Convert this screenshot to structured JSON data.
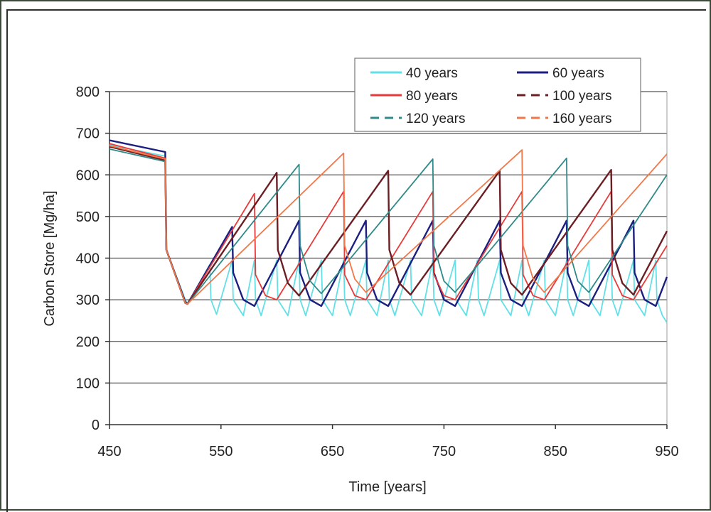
{
  "chart_data": {
    "type": "line",
    "title": "",
    "xlabel": "Time [years]",
    "ylabel": "Carbon Store [Mg/ha]",
    "xlim": [
      450,
      950
    ],
    "ylim": [
      0,
      800
    ],
    "xticks": [
      450,
      550,
      650,
      750,
      850,
      950
    ],
    "yticks": [
      0,
      100,
      200,
      300,
      400,
      500,
      600,
      700,
      800
    ],
    "grid": "horizontal",
    "legend_position": "top-right",
    "series": [
      {
        "name": "40 years",
        "color": "#62e0e6",
        "dash": "solid",
        "peak": 395,
        "x": [
          450,
          500,
          501,
          518,
          520,
          540,
          541,
          546,
          560,
          561,
          570,
          580,
          581,
          586,
          600,
          601,
          610,
          620,
          621,
          626,
          640,
          641,
          650,
          660,
          661,
          666,
          680,
          681,
          690,
          700,
          701,
          706,
          720,
          721,
          730,
          740,
          741,
          746,
          760,
          761,
          770,
          780,
          781,
          786,
          800,
          801,
          810,
          820,
          821,
          826,
          840,
          841,
          850,
          860,
          861,
          866,
          880,
          881,
          890,
          900,
          901,
          906,
          920,
          921,
          930,
          940,
          941,
          946,
          950
        ],
        "y": [
          672,
          645,
          420,
          300,
          290,
          385,
          300,
          265,
          395,
          300,
          262,
          395,
          300,
          262,
          395,
          300,
          262,
          395,
          300,
          262,
          395,
          300,
          262,
          395,
          300,
          262,
          395,
          300,
          262,
          395,
          300,
          262,
          395,
          300,
          262,
          395,
          300,
          262,
          395,
          300,
          262,
          395,
          300,
          262,
          395,
          300,
          262,
          395,
          300,
          262,
          395,
          300,
          262,
          395,
          300,
          262,
          395,
          300,
          262,
          395,
          300,
          262,
          395,
          300,
          262,
          395,
          300,
          262,
          245
        ]
      },
      {
        "name": "60 years",
        "color": "#1c1e80",
        "dash": "solid",
        "x": [
          450,
          500,
          501,
          518,
          520,
          560,
          561,
          570,
          580,
          620,
          621,
          630,
          640,
          680,
          681,
          690,
          700,
          740,
          741,
          750,
          760,
          800,
          801,
          810,
          820,
          860,
          861,
          870,
          880,
          920,
          921,
          930,
          940,
          950
        ],
        "y": [
          683,
          655,
          420,
          295,
          290,
          475,
          365,
          300,
          285,
          490,
          365,
          300,
          285,
          490,
          365,
          300,
          285,
          490,
          365,
          300,
          285,
          490,
          365,
          300,
          285,
          490,
          365,
          300,
          285,
          490,
          365,
          300,
          285,
          355
        ]
      },
      {
        "name": "80 years",
        "color": "#e83a3a",
        "dash": "solid",
        "x": [
          450,
          500,
          501,
          518,
          520,
          580,
          581,
          590,
          600,
          660,
          661,
          670,
          680,
          740,
          741,
          750,
          760,
          820,
          821,
          830,
          840,
          900,
          901,
          910,
          920,
          950
        ],
        "y": [
          675,
          640,
          420,
          292,
          290,
          555,
          360,
          310,
          300,
          560,
          360,
          310,
          300,
          560,
          360,
          310,
          300,
          560,
          360,
          310,
          300,
          560,
          360,
          310,
          300,
          430
        ]
      },
      {
        "name": "100 years",
        "color": "#6b1e24",
        "dash": "dash",
        "x": [
          450,
          500,
          501,
          518,
          520,
          600,
          601,
          610,
          620,
          700,
          701,
          710,
          720,
          800,
          801,
          810,
          820,
          900,
          901,
          910,
          920,
          950
        ],
        "y": [
          668,
          635,
          420,
          292,
          290,
          605,
          420,
          340,
          310,
          610,
          420,
          340,
          312,
          610,
          420,
          340,
          312,
          612,
          420,
          340,
          312,
          465
        ]
      },
      {
        "name": "120 years",
        "color": "#2f8a88",
        "dash": "dash",
        "x": [
          450,
          500,
          501,
          518,
          520,
          620,
          621,
          630,
          640,
          740,
          741,
          750,
          760,
          860,
          861,
          870,
          880,
          950
        ],
        "y": [
          662,
          632,
          420,
          292,
          290,
          625,
          430,
          345,
          315,
          638,
          430,
          345,
          318,
          640,
          430,
          345,
          318,
          600
        ]
      },
      {
        "name": "160 years",
        "color": "#f2784a",
        "dash": "dash",
        "x": [
          450,
          500,
          501,
          518,
          520,
          660,
          661,
          670,
          680,
          820,
          821,
          830,
          840,
          950
        ],
        "y": [
          670,
          638,
          420,
          292,
          290,
          652,
          430,
          350,
          318,
          660,
          430,
          350,
          318,
          650
        ]
      }
    ]
  }
}
